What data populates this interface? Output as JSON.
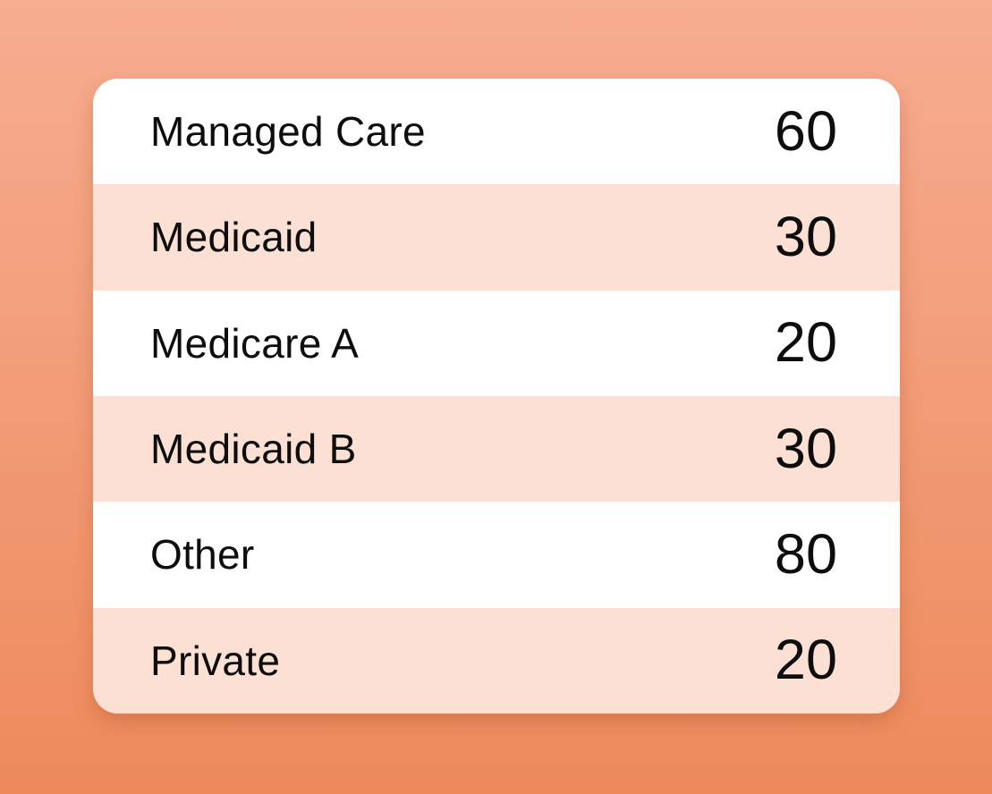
{
  "background": {
    "gradient_top": "#f7ad91",
    "gradient_bottom": "#ee8a5c"
  },
  "card": {
    "background": "#ffffff",
    "alt_row_background": "#fce0d4",
    "text_color": "#0d0d0d"
  },
  "chart_data": {
    "type": "table",
    "columns": [
      "label",
      "value"
    ],
    "rows": [
      {
        "label": "Managed Care",
        "value": 60
      },
      {
        "label": "Medicaid",
        "value": 30
      },
      {
        "label": "Medicare A",
        "value": 20
      },
      {
        "label": "Medicaid B",
        "value": 30
      },
      {
        "label": "Other",
        "value": 80
      },
      {
        "label": "Private",
        "value": 20
      }
    ]
  }
}
